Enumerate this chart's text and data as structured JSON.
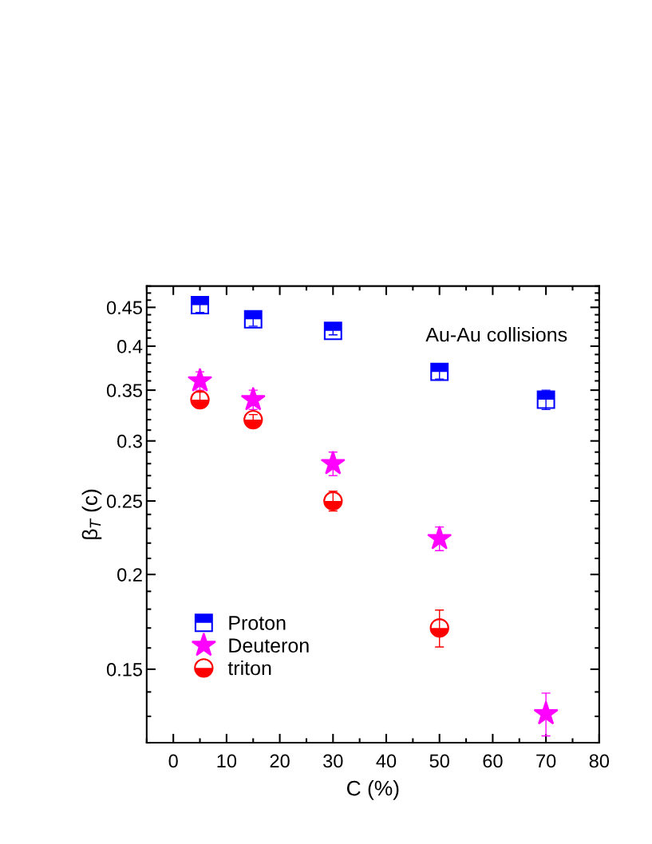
{
  "chart_data": {
    "type": "scatter",
    "xlabel": "C (%)",
    "ylabel": "β$_{T}$ (c)",
    "log": "y",
    "xlim": [
      -5,
      80
    ],
    "xticks": [
      0,
      10,
      20,
      30,
      40,
      50,
      60,
      70,
      80
    ],
    "ylim": [
      0.12,
      0.48
    ],
    "yticks": [
      0.15,
      0.2,
      0.25,
      0.3,
      0.35,
      0.4,
      0.45
    ],
    "x": [
      5,
      15,
      30,
      50,
      70
    ],
    "series": [
      {
        "name": "Proton",
        "color": "#0000ff",
        "marker": "square",
        "values": [
          0.453,
          0.434,
          0.419,
          0.37,
          0.34
        ],
        "errors": [
          0.01,
          0.009,
          0.005,
          0.008,
          0.01
        ]
      },
      {
        "name": "Deuteron",
        "color": "#ff00ff",
        "marker": "star",
        "values": [
          0.36,
          0.34,
          0.28,
          0.223,
          0.131
        ],
        "errors": [
          0.01,
          0.01,
          0.01,
          0.008,
          0.0085
        ]
      },
      {
        "name": "triton",
        "color": "#ff0000",
        "marker": "circle",
        "x": [
          5,
          15,
          30,
          50
        ],
        "values": [
          0.34,
          0.32,
          0.25,
          0.17
        ],
        "errors": [
          0.008,
          0.005,
          0.0075,
          0.0095
        ]
      }
    ],
    "annotations": [
      "Au-Au collisions"
    ],
    "legend": "bottom left",
    "grid": false
  }
}
